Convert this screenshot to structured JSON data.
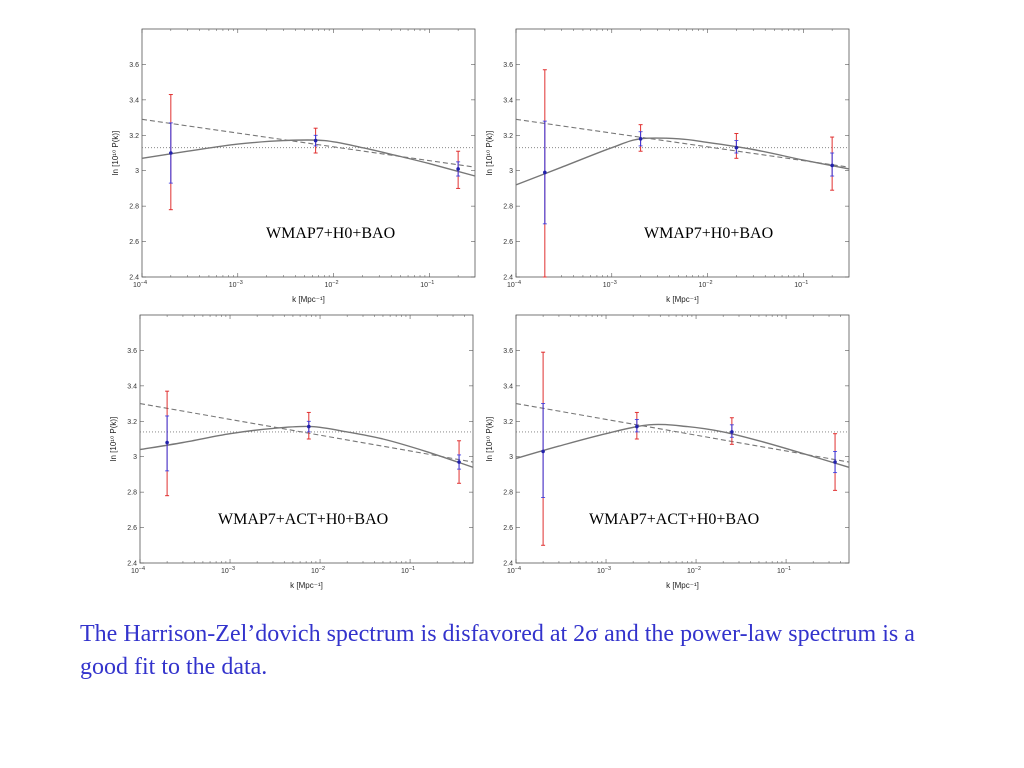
{
  "caption": {
    "text": "The Harrison-Zelʼdovich spectrum is disfavored at 2σ and the power-law spectrum is a good fit to the data."
  },
  "colors": {
    "frame": "#555555",
    "curve": "#777777",
    "error_outer": "#e03030",
    "error_inner": "#3333dd",
    "point": "#2222aa",
    "caption": "#3333cc"
  },
  "chart_data": [
    {
      "type": "scatter",
      "annotation": "WMAP7+H0+BAO",
      "xlabel": "k [Mpc⁻¹]",
      "ylabel": "ln [10¹⁰ P(k)]",
      "xscale": "log",
      "xlim": [
        0.0001,
        0.3
      ],
      "ylim": [
        2.4,
        3.8
      ],
      "x_ticks": [
        {
          "value": 0.0001,
          "base": "10",
          "exp": "−4"
        },
        {
          "value": 0.001,
          "base": "10",
          "exp": "−3"
        },
        {
          "value": 0.01,
          "base": "10",
          "exp": "−2"
        },
        {
          "value": 0.1,
          "base": "10",
          "exp": "−1"
        }
      ],
      "y_ticks": [
        {
          "value": 2.4,
          "label": "2.4"
        },
        {
          "value": 2.6,
          "label": "2.6"
        },
        {
          "value": 2.8,
          "label": "2.8"
        },
        {
          "value": 3.0,
          "label": "3"
        },
        {
          "value": 3.2,
          "label": "3.2"
        },
        {
          "value": 3.4,
          "label": "3.4"
        },
        {
          "value": 3.6,
          "label": "3.6"
        }
      ],
      "points": [
        {
          "k": 0.0002,
          "y": 3.1,
          "inner": [
            2.93,
            3.27
          ],
          "outer": [
            2.78,
            3.43
          ]
        },
        {
          "k": 0.0065,
          "y": 3.17,
          "inner": [
            3.14,
            3.2
          ],
          "outer": [
            3.1,
            3.24
          ]
        },
        {
          "k": 0.2,
          "y": 3.01,
          "inner": [
            2.97,
            3.05
          ],
          "outer": [
            2.9,
            3.11
          ]
        }
      ],
      "hz_level": 3.13,
      "power_law": [
        [
          0.0001,
          3.29
        ],
        [
          0.3,
          3.02
        ]
      ],
      "running": [
        [
          0.0001,
          3.07
        ],
        [
          0.0003,
          3.11
        ],
        [
          0.001,
          3.15
        ],
        [
          0.003,
          3.17
        ],
        [
          0.008,
          3.17
        ],
        [
          0.02,
          3.13
        ],
        [
          0.05,
          3.08
        ],
        [
          0.1,
          3.04
        ],
        [
          0.3,
          2.97
        ]
      ]
    },
    {
      "type": "scatter",
      "annotation": "WMAP7+H0+BAO",
      "xlabel": "k [Mpc⁻¹]",
      "ylabel": "ln [10¹⁰ P(k)]",
      "xscale": "log",
      "xlim": [
        0.0001,
        0.3
      ],
      "ylim": [
        2.4,
        3.8
      ],
      "x_ticks": [
        {
          "value": 0.0001,
          "base": "10",
          "exp": "−4"
        },
        {
          "value": 0.001,
          "base": "10",
          "exp": "−3"
        },
        {
          "value": 0.01,
          "base": "10",
          "exp": "−2"
        },
        {
          "value": 0.1,
          "base": "10",
          "exp": "−1"
        }
      ],
      "y_ticks": [
        {
          "value": 2.4,
          "label": "2.4"
        },
        {
          "value": 2.6,
          "label": "2.6"
        },
        {
          "value": 2.8,
          "label": "2.8"
        },
        {
          "value": 3.0,
          "label": "3"
        },
        {
          "value": 3.2,
          "label": "3.2"
        },
        {
          "value": 3.4,
          "label": "3.4"
        },
        {
          "value": 3.6,
          "label": "3.6"
        }
      ],
      "points": [
        {
          "k": 0.0002,
          "y": 2.99,
          "inner": [
            2.7,
            3.28
          ],
          "outer": [
            2.4,
            3.57
          ]
        },
        {
          "k": 0.002,
          "y": 3.18,
          "inner": [
            3.14,
            3.22
          ],
          "outer": [
            3.11,
            3.26
          ]
        },
        {
          "k": 0.02,
          "y": 3.13,
          "inner": [
            3.1,
            3.17
          ],
          "outer": [
            3.07,
            3.21
          ]
        },
        {
          "k": 0.2,
          "y": 3.03,
          "inner": [
            2.97,
            3.1
          ],
          "outer": [
            2.89,
            3.19
          ]
        }
      ],
      "hz_level": 3.13,
      "power_law": [
        [
          0.0001,
          3.29
        ],
        [
          0.3,
          3.02
        ]
      ],
      "running": [
        [
          0.0001,
          2.92
        ],
        [
          0.0003,
          3.02
        ],
        [
          0.001,
          3.13
        ],
        [
          0.002,
          3.18
        ],
        [
          0.005,
          3.18
        ],
        [
          0.01,
          3.16
        ],
        [
          0.03,
          3.12
        ],
        [
          0.1,
          3.06
        ],
        [
          0.3,
          3.01
        ]
      ]
    },
    {
      "type": "scatter",
      "annotation": "WMAP7+ACT+H0+BAO",
      "xlabel": "k [Mpc⁻¹]",
      "ylabel": "ln [10¹⁰ P(k)]",
      "xscale": "log",
      "xlim": [
        0.0001,
        0.5
      ],
      "ylim": [
        2.4,
        3.8
      ],
      "x_ticks": [
        {
          "value": 0.0001,
          "base": "10",
          "exp": "−4"
        },
        {
          "value": 0.001,
          "base": "10",
          "exp": "−3"
        },
        {
          "value": 0.01,
          "base": "10",
          "exp": "−2"
        },
        {
          "value": 0.1,
          "base": "10",
          "exp": "−1"
        }
      ],
      "y_ticks": [
        {
          "value": 2.4,
          "label": "2.4"
        },
        {
          "value": 2.6,
          "label": "2.6"
        },
        {
          "value": 2.8,
          "label": "2.8"
        },
        {
          "value": 3.0,
          "label": "3"
        },
        {
          "value": 3.2,
          "label": "3.2"
        },
        {
          "value": 3.4,
          "label": "3.4"
        },
        {
          "value": 3.6,
          "label": "3.6"
        }
      ],
      "points": [
        {
          "k": 0.0002,
          "y": 3.08,
          "inner": [
            2.92,
            3.23
          ],
          "outer": [
            2.78,
            3.37
          ]
        },
        {
          "k": 0.0075,
          "y": 3.17,
          "inner": [
            3.14,
            3.2
          ],
          "outer": [
            3.1,
            3.25
          ]
        },
        {
          "k": 0.35,
          "y": 2.97,
          "inner": [
            2.93,
            3.01
          ],
          "outer": [
            2.85,
            3.09
          ]
        }
      ],
      "hz_level": 3.14,
      "power_law": [
        [
          0.0001,
          3.3
        ],
        [
          0.5,
          2.97
        ]
      ],
      "running": [
        [
          0.0001,
          3.04
        ],
        [
          0.0003,
          3.08
        ],
        [
          0.001,
          3.13
        ],
        [
          0.003,
          3.16
        ],
        [
          0.008,
          3.17
        ],
        [
          0.02,
          3.14
        ],
        [
          0.05,
          3.1
        ],
        [
          0.15,
          3.03
        ],
        [
          0.5,
          2.94
        ]
      ]
    },
    {
      "type": "scatter",
      "annotation": "WMAP7+ACT+H0+BAO",
      "xlabel": "k [Mpc⁻¹]",
      "ylabel": "ln [10¹⁰ P(k)]",
      "xscale": "log",
      "xlim": [
        0.0001,
        0.5
      ],
      "ylim": [
        2.4,
        3.8
      ],
      "x_ticks": [
        {
          "value": 0.0001,
          "base": "10",
          "exp": "−4"
        },
        {
          "value": 0.001,
          "base": "10",
          "exp": "−3"
        },
        {
          "value": 0.01,
          "base": "10",
          "exp": "−2"
        },
        {
          "value": 0.1,
          "base": "10",
          "exp": "−1"
        }
      ],
      "y_ticks": [
        {
          "value": 2.4,
          "label": "2.4"
        },
        {
          "value": 2.6,
          "label": "2.6"
        },
        {
          "value": 2.8,
          "label": "2.8"
        },
        {
          "value": 3.0,
          "label": "3"
        },
        {
          "value": 3.2,
          "label": "3.2"
        },
        {
          "value": 3.4,
          "label": "3.4"
        },
        {
          "value": 3.6,
          "label": "3.6"
        }
      ],
      "points": [
        {
          "k": 0.0002,
          "y": 3.03,
          "inner": [
            2.77,
            3.3
          ],
          "outer": [
            2.5,
            3.59
          ]
        },
        {
          "k": 0.0022,
          "y": 3.17,
          "inner": [
            3.14,
            3.21
          ],
          "outer": [
            3.1,
            3.25
          ]
        },
        {
          "k": 0.025,
          "y": 3.14,
          "inner": [
            3.11,
            3.18
          ],
          "outer": [
            3.07,
            3.22
          ]
        },
        {
          "k": 0.35,
          "y": 2.97,
          "inner": [
            2.91,
            3.03
          ],
          "outer": [
            2.81,
            3.13
          ]
        }
      ],
      "hz_level": 3.14,
      "power_law": [
        [
          0.0001,
          3.3
        ],
        [
          0.5,
          2.97
        ]
      ],
      "running": [
        [
          0.0001,
          2.99
        ],
        [
          0.0003,
          3.06
        ],
        [
          0.001,
          3.13
        ],
        [
          0.003,
          3.18
        ],
        [
          0.008,
          3.17
        ],
        [
          0.02,
          3.14
        ],
        [
          0.05,
          3.09
        ],
        [
          0.15,
          3.02
        ],
        [
          0.5,
          2.94
        ]
      ]
    }
  ]
}
